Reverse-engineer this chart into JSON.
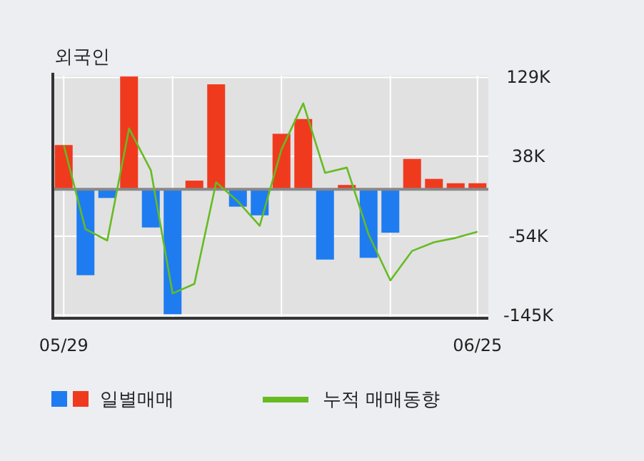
{
  "chart_data": {
    "type": "bar",
    "title": "외국인",
    "categories": [
      "05/29",
      null,
      null,
      null,
      null,
      null,
      null,
      null,
      null,
      null,
      null,
      null,
      null,
      null,
      null,
      null,
      null,
      null,
      null,
      "06/25"
    ],
    "series": [
      {
        "name": "일별매매",
        "colors": [
          "#f03a1e",
          "#1e7cf0",
          "#1e7cf0",
          "#f03a1e",
          "#1e7cf0",
          "#1e7cf0",
          "#f03a1e",
          "#f03a1e",
          "#1e7cf0",
          "#1e7cf0",
          "#f03a1e",
          "#f03a1e",
          "#1e7cf0",
          "#f03a1e",
          "#1e7cf0",
          "#1e7cf0",
          "#f03a1e",
          "#f03a1e",
          "#f03a1e",
          "#f03a1e"
        ],
        "values": [
          51,
          -99,
          -10,
          130,
          -44,
          -144,
          10,
          121,
          -20,
          -30,
          64,
          81,
          -81,
          5,
          -79,
          -50,
          35,
          12,
          7,
          7
        ]
      },
      {
        "name": "누적 매매동향",
        "type": "line",
        "color": "#66bb22",
        "values": [
          51,
          -46,
          -59,
          70,
          22,
          -120,
          -109,
          8,
          -14,
          -42,
          46,
          99,
          19,
          25,
          -52,
          -105,
          -71,
          -61,
          -56,
          -49
        ]
      }
    ],
    "ylim": [
      -147,
      131
    ],
    "yticks": [
      {
        "value": 129,
        "label": "129K"
      },
      {
        "value": 38,
        "label": "38K"
      },
      {
        "value": -54,
        "label": "-54K"
      },
      {
        "value": -145,
        "label": "-145K"
      }
    ],
    "grid": true,
    "legend": "bottom left"
  }
}
